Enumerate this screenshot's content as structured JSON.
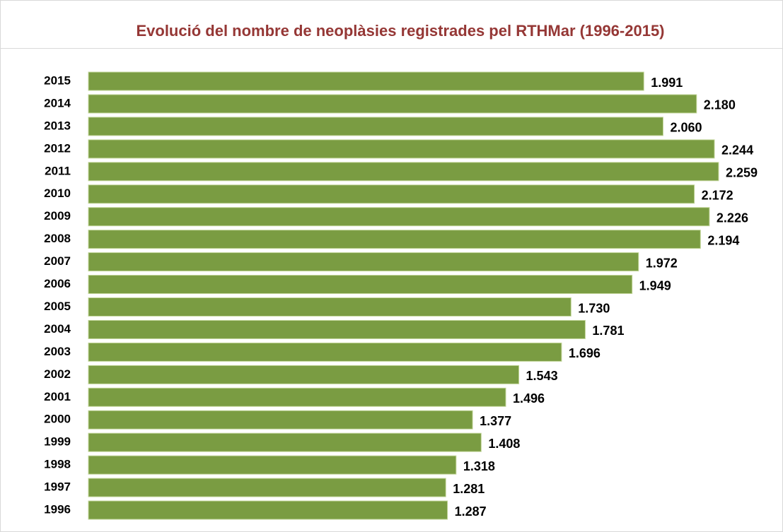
{
  "chart_data": {
    "type": "barh",
    "title": "Evolució del nombre de neoplàsies registrades pel RTHMar (1996-2015)",
    "categories": [
      "2015",
      "2014",
      "2013",
      "2012",
      "2011",
      "2010",
      "2009",
      "2008",
      "2007",
      "2006",
      "2005",
      "2004",
      "2003",
      "2002",
      "2001",
      "2000",
      "1999",
      "1998",
      "1997",
      "1996"
    ],
    "values": [
      1991,
      2180,
      2060,
      2244,
      2259,
      2172,
      2226,
      2194,
      1972,
      1949,
      1730,
      1781,
      1696,
      1543,
      1496,
      1377,
      1408,
      1318,
      1281,
      1287
    ],
    "value_labels": [
      "1.991",
      "2.180",
      "2.060",
      "2.244",
      "2.259",
      "2.172",
      "2.226",
      "2.194",
      "1.972",
      "1.949",
      "1.730",
      "1.781",
      "1.696",
      "1.543",
      "1.496",
      "1.377",
      "1.408",
      "1.318",
      "1.281",
      "1.287"
    ],
    "color": "#7a9c42"
  }
}
